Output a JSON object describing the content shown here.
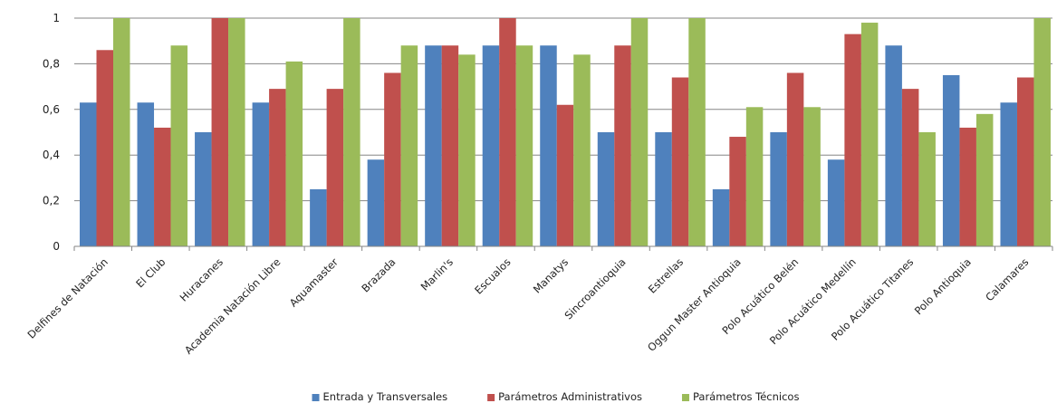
{
  "chart_data": {
    "type": "bar",
    "title": "",
    "xlabel": "",
    "ylabel": "",
    "ylim": [
      0,
      1
    ],
    "yticks": [
      "0",
      "0,2",
      "0,4",
      "0,6",
      "0,8",
      "1"
    ],
    "ytick_values": [
      0,
      0.2,
      0.4,
      0.6,
      0.8,
      1
    ],
    "grid": true,
    "legend_position": "bottom",
    "categories": [
      "Delfines de Natación",
      "El Club",
      "Huracanes",
      "Academia Natación Libre",
      "Aquamaster",
      "Brazada",
      "Marlin's",
      "Escualos",
      "Manatys",
      "Sincroantioquia",
      "Estrellas",
      "Oggun Master Antioquia",
      "Polo Acuático Belén",
      "Polo Acuático Medellín",
      "Polo Acuático Titanes",
      "Polo Antioquia",
      "Calamares"
    ],
    "series": [
      {
        "name": "Entrada y Transversales",
        "color": "#4f81bd",
        "values": [
          0.63,
          0.63,
          0.5,
          0.63,
          0.25,
          0.38,
          0.88,
          0.88,
          0.88,
          0.5,
          0.5,
          0.25,
          0.5,
          0.38,
          0.88,
          0.75,
          0.63
        ]
      },
      {
        "name": "Parámetros Administrativos",
        "color": "#c0504d",
        "values": [
          0.86,
          0.52,
          1.0,
          0.69,
          0.69,
          0.76,
          0.88,
          1.0,
          0.62,
          0.88,
          0.74,
          0.48,
          0.76,
          0.93,
          0.69,
          0.52,
          0.74
        ]
      },
      {
        "name": "Parámetros Técnicos",
        "color": "#9bbb59",
        "values": [
          1.0,
          0.88,
          1.0,
          0.81,
          1.0,
          0.88,
          0.84,
          0.88,
          0.84,
          1.0,
          1.0,
          0.61,
          0.61,
          0.98,
          0.5,
          0.58,
          1.0
        ]
      }
    ]
  }
}
